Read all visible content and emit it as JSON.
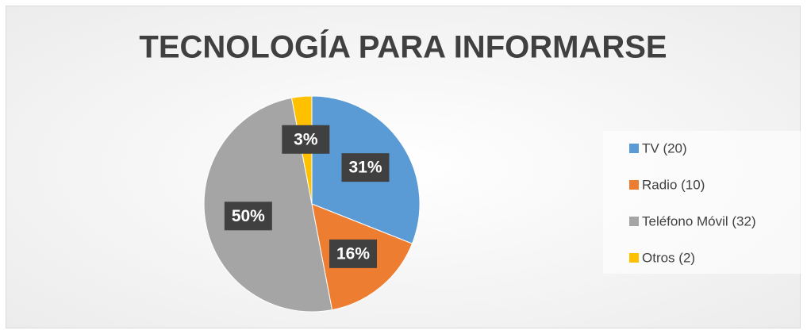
{
  "chart_data": {
    "type": "pie",
    "title": "TECNOLOGÍA PARA INFORMARSE",
    "categories": [
      "TV (20)",
      "Radio (10)",
      "Teléfono Móvil (32)",
      "Otros (2)"
    ],
    "values": [
      31,
      16,
      50,
      3
    ],
    "value_labels": [
      "31%",
      "16%",
      "50%",
      "3%"
    ],
    "colors": [
      "#5b9bd5",
      "#ed7d31",
      "#a5a5a5",
      "#ffc000"
    ],
    "legend": "right"
  }
}
